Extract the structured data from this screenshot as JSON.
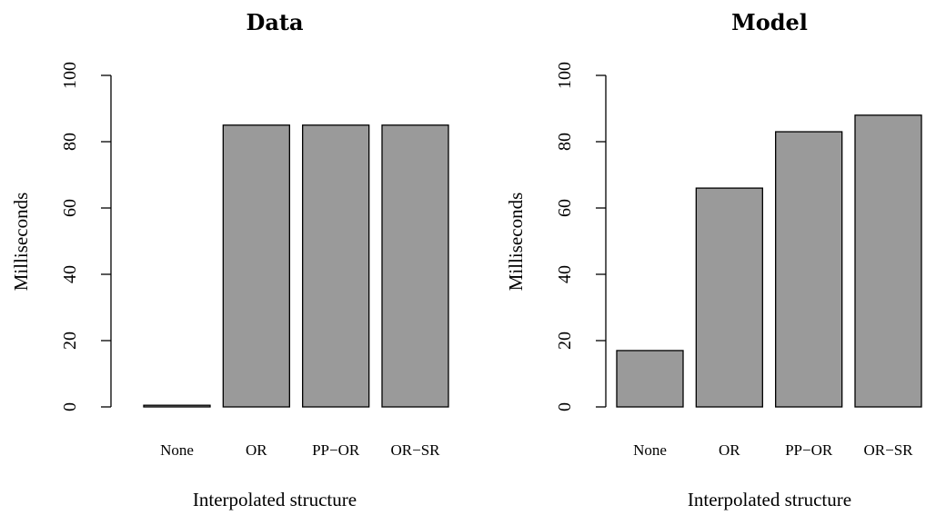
{
  "colors": {
    "bar_fill": "#9a9a9a",
    "bar_stroke": "#000000"
  },
  "chart_data": [
    {
      "type": "bar",
      "title": "Data",
      "xlabel": "Interpolated structure",
      "ylabel": "Milliseconds",
      "categories": [
        "None",
        "OR",
        "PP−OR",
        "OR−SR"
      ],
      "values": [
        0.5,
        85,
        85,
        85
      ],
      "ylim": [
        0,
        100
      ],
      "yticks": [
        "0",
        "20",
        "40",
        "60",
        "80",
        "100"
      ],
      "grid": false
    },
    {
      "type": "bar",
      "title": "Model",
      "xlabel": "Interpolated structure",
      "ylabel": "Milliseconds",
      "categories": [
        "None",
        "OR",
        "PP−OR",
        "OR−SR"
      ],
      "values": [
        17,
        66,
        83,
        88
      ],
      "ylim": [
        0,
        100
      ],
      "yticks": [
        "0",
        "20",
        "40",
        "60",
        "80",
        "100"
      ],
      "grid": false
    }
  ]
}
